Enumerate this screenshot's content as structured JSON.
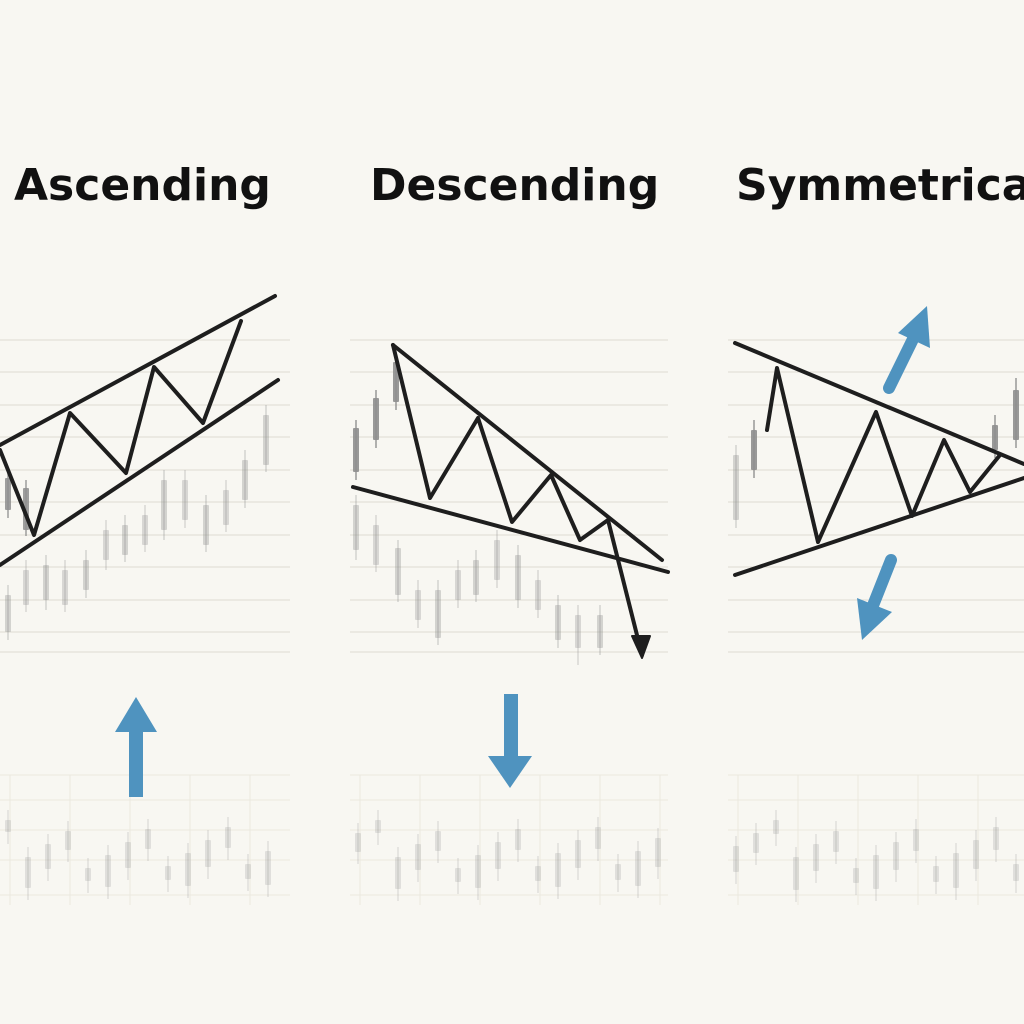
{
  "panels": [
    {
      "id": "ascending",
      "title": "Ascending",
      "breakout": "up"
    },
    {
      "id": "descending",
      "title": "Descending",
      "breakout": "down"
    },
    {
      "id": "symmetrical",
      "title": "Symmetrical",
      "breakout": "either"
    }
  ],
  "colors": {
    "background": "#f8f7f2",
    "line": "#1e1e1e",
    "arrow_blue": "#4f93bf",
    "candle": "#8e8e8e",
    "grid": "#dedbd2",
    "text": "#111111"
  }
}
